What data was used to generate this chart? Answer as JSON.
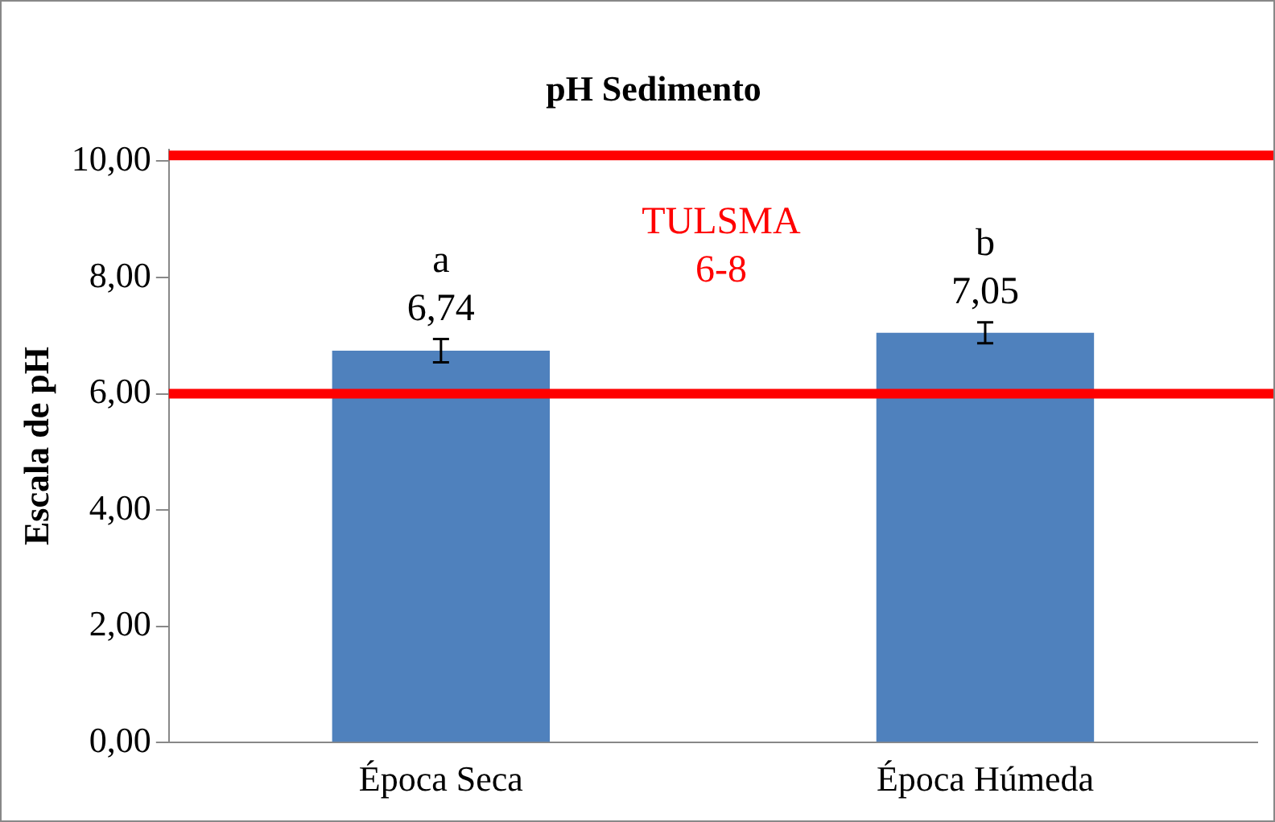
{
  "chart_data": {
    "type": "bar",
    "title": "pH Sedimento",
    "ylabel": "Escala de pH",
    "categories": [
      "Época Seca",
      "Época Húmeda"
    ],
    "values": [
      6.74,
      7.05
    ],
    "color": "#4f81bd",
    "errors": [
      0.2,
      0.18
    ],
    "value_labels": [
      "6,74",
      "7,05"
    ],
    "ylim": [
      0,
      10.2
    ],
    "yticks": [
      {
        "value": 0,
        "label": "0,00"
      },
      {
        "value": 2,
        "label": "2,00"
      },
      {
        "value": 4,
        "label": "4,00"
      },
      {
        "value": 6,
        "label": "6,00"
      },
      {
        "value": 8,
        "label": "8,00"
      },
      {
        "value": 10,
        "label": "10,00"
      }
    ],
    "ref_lines": [
      {
        "axis": "y",
        "value": 10.1,
        "color": "#ff0000"
      },
      {
        "axis": "y",
        "value": 6,
        "color": "#ff0000"
      }
    ],
    "annotations": [
      "a",
      "b",
      "TULSMA",
      "6-8"
    ],
    "grid": false,
    "legend": false
  }
}
